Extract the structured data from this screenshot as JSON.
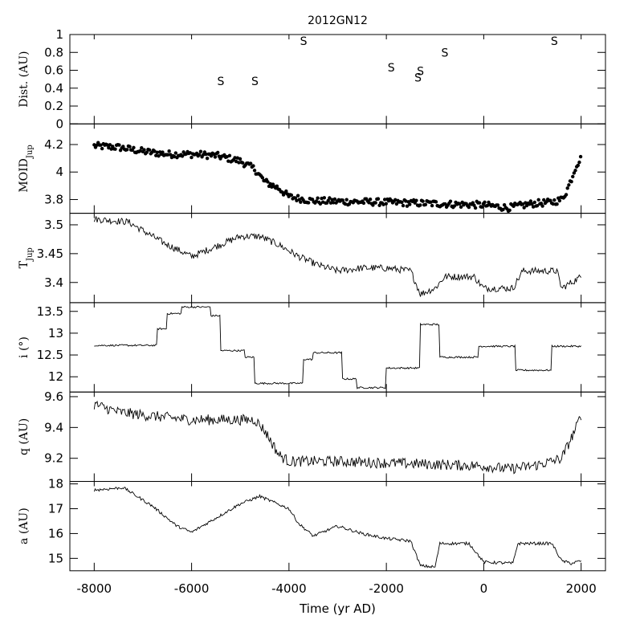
{
  "chart_data": {
    "type": "line",
    "title": "2012GN12",
    "xlabel": "Time (yr AD)",
    "xlim": [
      -8500,
      2500
    ],
    "x_ticks": [
      -8000,
      -6000,
      -4000,
      -2000,
      0,
      2000
    ],
    "panels": [
      {
        "id": "dist",
        "ylabel": "Dist. (AU)",
        "type": "scatter-text",
        "ylim": [
          0,
          1
        ],
        "y_ticks": [
          0,
          0.2,
          0.4,
          0.6,
          0.8,
          1
        ],
        "marker_text": "S",
        "points": [
          {
            "x": -5400,
            "y": 0.48
          },
          {
            "x": -4700,
            "y": 0.48
          },
          {
            "x": -3700,
            "y": 0.93
          },
          {
            "x": -1900,
            "y": 0.63
          },
          {
            "x": -1350,
            "y": 0.52
          },
          {
            "x": -1300,
            "y": 0.59
          },
          {
            "x": -800,
            "y": 0.8
          },
          {
            "x": 1450,
            "y": 0.93
          }
        ]
      },
      {
        "id": "moid",
        "ylabel": "MOID",
        "ylabel_sub": "Jup",
        "type": "scatter",
        "ylim": [
          3.7,
          4.35
        ],
        "y_ticks": [
          3.8,
          4,
          4.2
        ],
        "knots": [
          [
            -8000,
            4.19
          ],
          [
            -7500,
            4.18
          ],
          [
            -7000,
            4.15
          ],
          [
            -6500,
            4.13
          ],
          [
            -6000,
            4.13
          ],
          [
            -5500,
            4.12
          ],
          [
            -5000,
            4.08
          ],
          [
            -4700,
            4.02
          ],
          [
            -4500,
            3.93
          ],
          [
            -4200,
            3.88
          ],
          [
            -4000,
            3.82
          ],
          [
            -3500,
            3.79
          ],
          [
            -2000,
            3.78
          ],
          [
            0,
            3.76
          ],
          [
            500,
            3.74
          ],
          [
            1000,
            3.77
          ],
          [
            1400,
            3.78
          ],
          [
            1600,
            3.8
          ],
          [
            1700,
            3.86
          ],
          [
            1800,
            3.95
          ],
          [
            1900,
            4.05
          ],
          [
            2000,
            4.1
          ]
        ],
        "noise": 0.025
      },
      {
        "id": "tjup",
        "ylabel": "T",
        "ylabel_sub": "Jup",
        "type": "line",
        "ylim": [
          3.365,
          3.52
        ],
        "y_ticks": [
          3.4,
          3.45,
          3.5
        ],
        "knots": [
          [
            -8000,
            3.51
          ],
          [
            -7300,
            3.505
          ],
          [
            -6600,
            3.47
          ],
          [
            -6000,
            3.445
          ],
          [
            -5000,
            3.48
          ],
          [
            -4600,
            3.48
          ],
          [
            -4200,
            3.465
          ],
          [
            -3800,
            3.445
          ],
          [
            -3400,
            3.43
          ],
          [
            -3000,
            3.42
          ],
          [
            -2500,
            3.425
          ],
          [
            -2000,
            3.425
          ],
          [
            -1500,
            3.42
          ],
          [
            -1300,
            3.38
          ],
          [
            -1000,
            3.39
          ],
          [
            -800,
            3.41
          ],
          [
            -600,
            3.41
          ],
          [
            -200,
            3.41
          ],
          [
            0,
            3.39
          ],
          [
            600,
            3.39
          ],
          [
            800,
            3.42
          ],
          [
            1500,
            3.42
          ],
          [
            1600,
            3.39
          ],
          [
            1800,
            3.4
          ],
          [
            2000,
            3.41
          ]
        ],
        "noise": 0.006
      },
      {
        "id": "incl",
        "ylabel": "i (°)",
        "type": "line",
        "ylim": [
          11.65,
          13.7
        ],
        "y_ticks": [
          12,
          12.5,
          13,
          13.5
        ],
        "steps": [
          [
            -8000,
            12.72
          ],
          [
            -6700,
            13.1
          ],
          [
            -6500,
            13.45
          ],
          [
            -6200,
            13.6
          ],
          [
            -5600,
            13.4
          ],
          [
            -5400,
            12.6
          ],
          [
            -4900,
            12.45
          ],
          [
            -4700,
            11.85
          ],
          [
            -3700,
            12.4
          ],
          [
            -3500,
            12.55
          ],
          [
            -2900,
            11.95
          ],
          [
            -2600,
            11.75
          ],
          [
            -2000,
            12.2
          ],
          [
            -1300,
            13.2
          ],
          [
            -900,
            12.45
          ],
          [
            -100,
            12.7
          ],
          [
            650,
            12.15
          ],
          [
            1400,
            12.7
          ]
        ],
        "noise": 0.02
      },
      {
        "id": "q",
        "ylabel": "q (AU)",
        "type": "line",
        "ylim": [
          9.05,
          9.63
        ],
        "y_ticks": [
          9.2,
          9.4,
          9.6
        ],
        "knots": [
          [
            -8000,
            9.55
          ],
          [
            -7500,
            9.5
          ],
          [
            -7000,
            9.48
          ],
          [
            -6000,
            9.45
          ],
          [
            -5000,
            9.45
          ],
          [
            -4700,
            9.45
          ],
          [
            -4500,
            9.38
          ],
          [
            -4200,
            9.22
          ],
          [
            -4000,
            9.18
          ],
          [
            -3000,
            9.18
          ],
          [
            -2000,
            9.17
          ],
          [
            0,
            9.15
          ],
          [
            500,
            9.13
          ],
          [
            1000,
            9.15
          ],
          [
            1400,
            9.18
          ],
          [
            1600,
            9.2
          ],
          [
            1750,
            9.3
          ],
          [
            1900,
            9.4
          ],
          [
            2000,
            9.48
          ]
        ],
        "noise": 0.035
      },
      {
        "id": "a",
        "ylabel": "a (AU)",
        "type": "line",
        "ylim": [
          14.5,
          18.1
        ],
        "y_ticks": [
          15,
          16,
          17,
          18
        ],
        "knots": [
          [
            -8000,
            17.75
          ],
          [
            -7400,
            17.85
          ],
          [
            -6800,
            17.1
          ],
          [
            -6300,
            16.3
          ],
          [
            -6000,
            16.05
          ],
          [
            -5000,
            17.2
          ],
          [
            -4600,
            17.5
          ],
          [
            -4000,
            17.0
          ],
          [
            -3800,
            16.4
          ],
          [
            -3500,
            15.9
          ],
          [
            -3000,
            16.3
          ],
          [
            -2500,
            16.0
          ],
          [
            -2000,
            15.8
          ],
          [
            -1500,
            15.7
          ],
          [
            -1300,
            14.7
          ],
          [
            -1000,
            14.65
          ],
          [
            -900,
            15.6
          ],
          [
            -300,
            15.6
          ],
          [
            0,
            14.85
          ],
          [
            600,
            14.8
          ],
          [
            700,
            15.6
          ],
          [
            1400,
            15.6
          ],
          [
            1600,
            14.9
          ],
          [
            1800,
            14.8
          ],
          [
            2000,
            14.9
          ]
        ],
        "noise": 0.06
      }
    ]
  }
}
